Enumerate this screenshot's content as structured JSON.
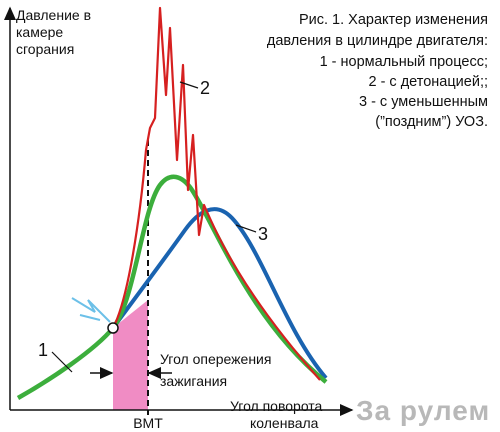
{
  "y_axis_label": [
    "Давление в",
    "камере",
    "сгорания"
  ],
  "caption": [
    "Рис. 1. Характер изменения",
    "давления в цилиндре двигателя:",
    "1 - нормальный процесс;",
    "2 - с детонацией;;",
    "3 - с уменьшенным",
    "(”поздним”) УОЗ."
  ],
  "curve_labels": [
    "1",
    "2",
    "3"
  ],
  "advance_label": [
    "Угол опережения",
    "зажигания"
  ],
  "x_axis_label": [
    "Угол поворота",
    "коленвала"
  ],
  "tdc_label": "ВМТ",
  "watermark": "За рулем"
}
